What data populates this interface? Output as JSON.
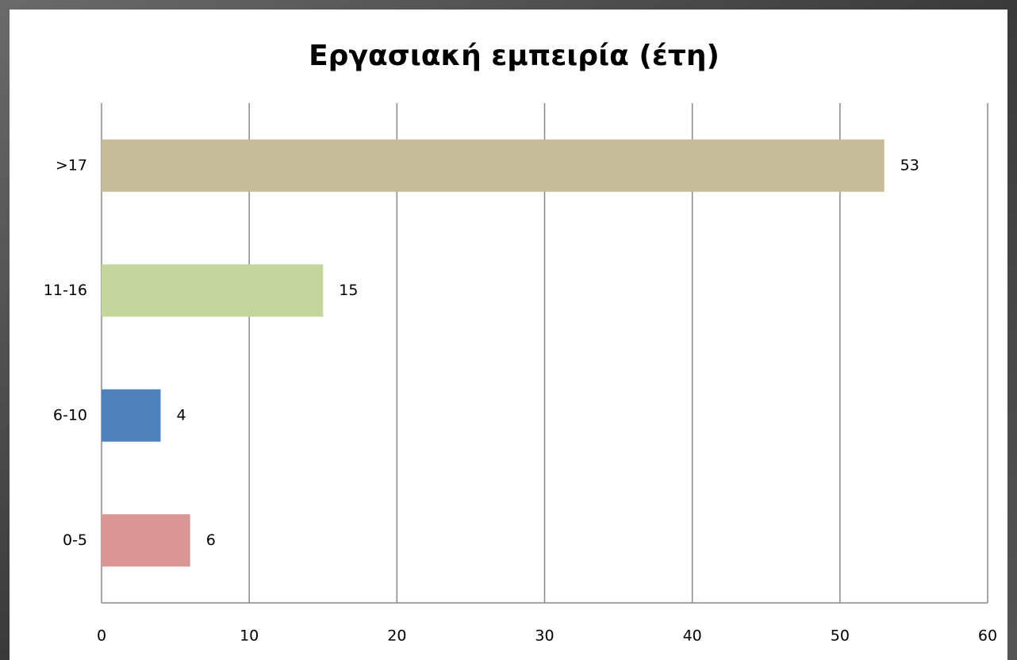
{
  "chart_data": {
    "type": "bar",
    "orientation": "horizontal",
    "title": "Εργασιακή εμπειρία (έτη)",
    "categories": [
      "0-5",
      "6-10",
      "11-16",
      ">17"
    ],
    "values": [
      6,
      4,
      15,
      53
    ],
    "colors": [
      "#d99694",
      "#4f81bd",
      "#c3d69b",
      "#c4bd97"
    ],
    "xlim": [
      0,
      60
    ],
    "xticks": [
      0,
      10,
      20,
      30,
      40,
      50,
      60
    ],
    "grid": true
  }
}
